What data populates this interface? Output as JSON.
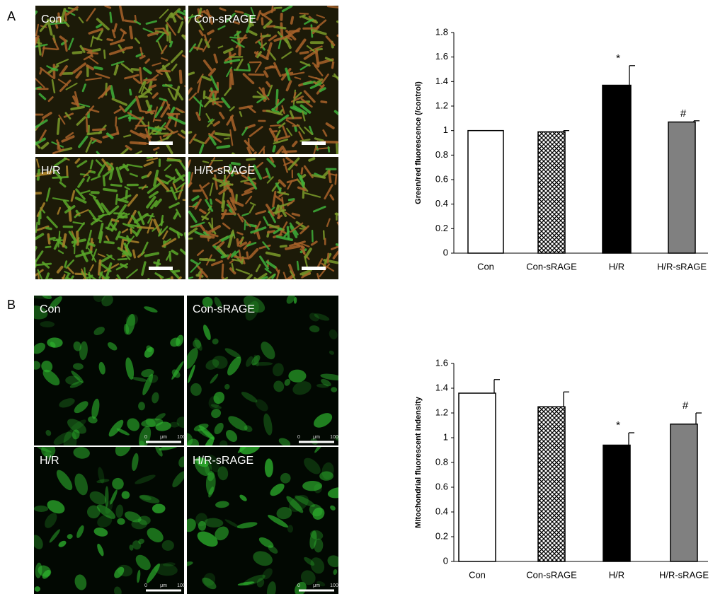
{
  "panels": [
    {
      "label": "A",
      "images": [
        "Con",
        "Con-sRAGE",
        "H/R",
        "H/R-sRAGE"
      ]
    },
    {
      "label": "B",
      "images": [
        "Con",
        "Con-sRAGE",
        "H/R",
        "H/R-sRAGE"
      ],
      "scale_label": [
        "0",
        "μm",
        "100"
      ]
    }
  ],
  "chart_data": [
    {
      "type": "bar",
      "y_label": "Green/red fluorescence (/control)",
      "categories": [
        "Con",
        "Con-sRAGE",
        "H/R",
        "H/R-sRAGE"
      ],
      "values": [
        1.0,
        0.99,
        1.37,
        1.07
      ],
      "errors": [
        0,
        0.01,
        0.16,
        0.01
      ],
      "annotations": [
        null,
        null,
        "*",
        "#"
      ],
      "colors": [
        "#ffffff",
        "#000000",
        "#000000",
        "#808080"
      ],
      "patterns": [
        "solid",
        "zigzag",
        "solid",
        "solid"
      ],
      "ylim": [
        0,
        1.8
      ],
      "yticks": [
        0,
        0.2,
        0.4,
        0.6,
        0.8,
        1,
        1.2,
        1.4,
        1.6,
        1.8
      ]
    },
    {
      "type": "bar",
      "y_label": "Mitochondrial fluorescent indensity",
      "categories": [
        "Con",
        "Con-sRAGE",
        "H/R",
        "H/R-sRAGE"
      ],
      "values": [
        1.36,
        1.25,
        0.94,
        1.11
      ],
      "errors": [
        0.11,
        0.12,
        0.1,
        0.09
      ],
      "annotations": [
        null,
        null,
        "*",
        "#"
      ],
      "colors": [
        "#ffffff",
        "#000000",
        "#000000",
        "#808080"
      ],
      "patterns": [
        "solid",
        "zigzag",
        "solid",
        "solid"
      ],
      "ylim": [
        0,
        1.6
      ],
      "yticks": [
        0,
        0.2,
        0.4,
        0.6,
        0.8,
        1,
        1.2,
        1.4,
        1.6
      ]
    }
  ]
}
